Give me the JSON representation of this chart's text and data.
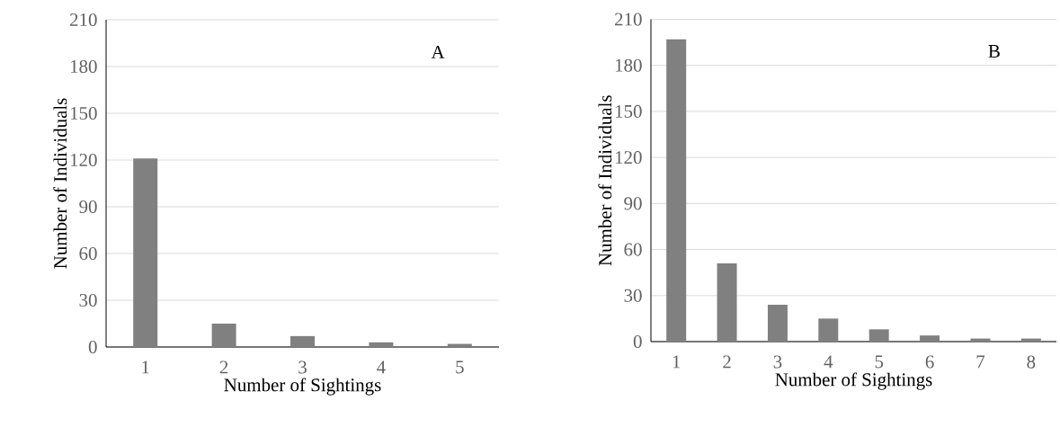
{
  "chart_data": [
    {
      "type": "bar",
      "xlabel": "Number of Sightings",
      "ylabel": "Number of Individuals",
      "annotations": [
        "A"
      ],
      "categories": [
        "1",
        "2",
        "3",
        "4",
        "5"
      ],
      "values": [
        121,
        15,
        7,
        3,
        2
      ],
      "color": "#808080",
      "ylim": [
        0,
        210
      ],
      "yticks": [
        0,
        30,
        60,
        90,
        120,
        150,
        180,
        210
      ],
      "grid": "y"
    },
    {
      "type": "bar",
      "xlabel": "Number of Sightings",
      "ylabel": "Number of Individuals",
      "annotations": [
        "B"
      ],
      "categories": [
        "1",
        "2",
        "3",
        "4",
        "5",
        "6",
        "7",
        "8"
      ],
      "values": [
        197,
        51,
        24,
        15,
        8,
        4,
        2,
        2
      ],
      "color": "#808080",
      "ylim": [
        0,
        210
      ],
      "yticks": [
        0,
        30,
        60,
        90,
        120,
        150,
        180,
        210
      ],
      "grid": "y"
    }
  ]
}
